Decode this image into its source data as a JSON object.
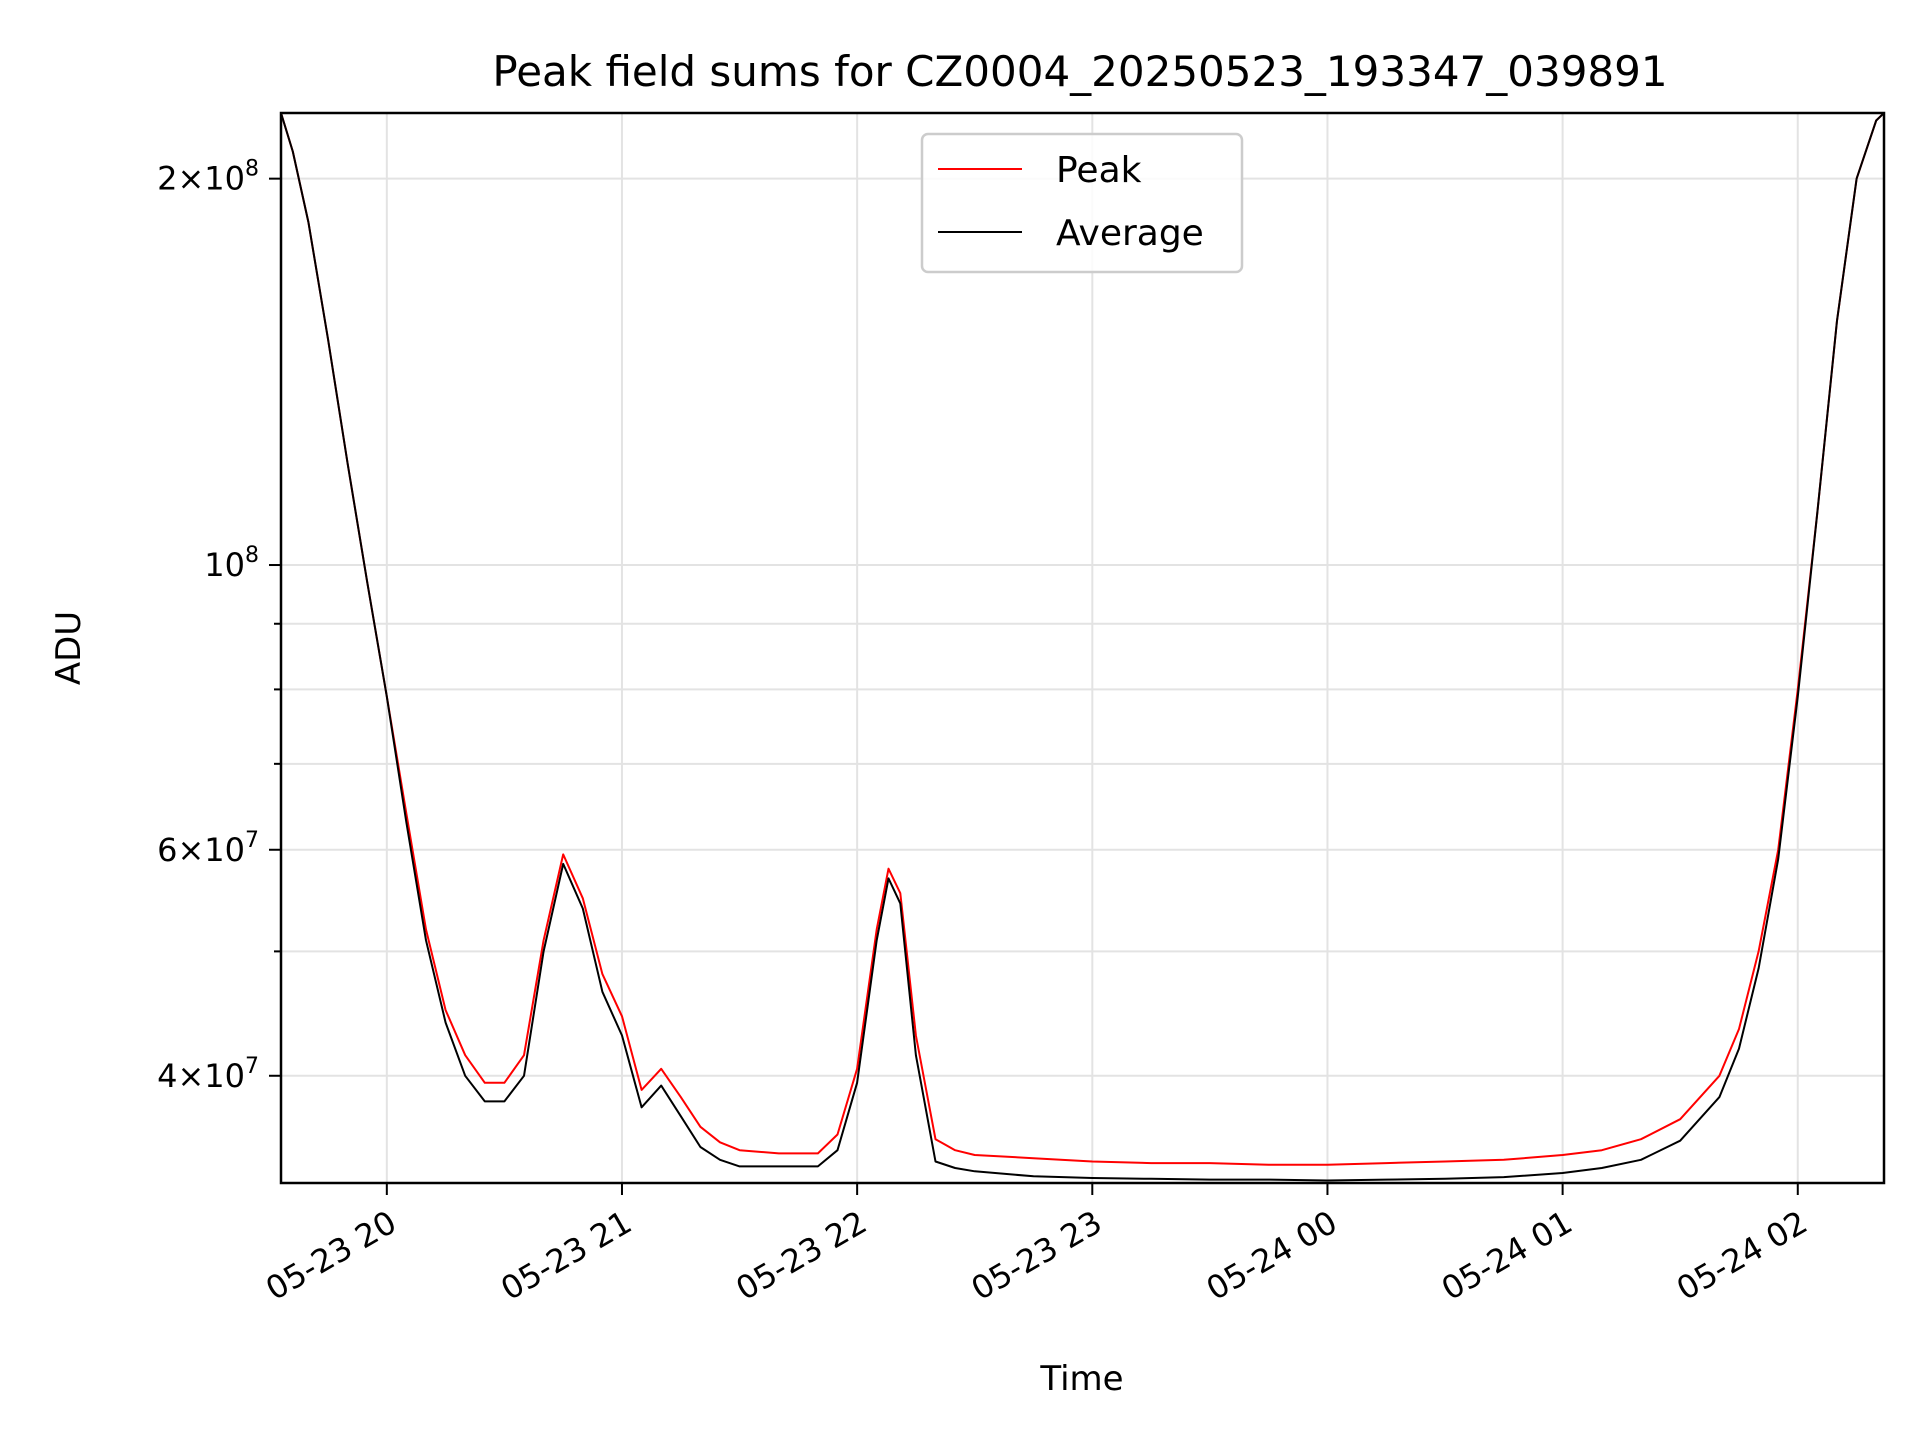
{
  "chart_data": {
    "type": "line",
    "title": "Peak field sums for CZ0004_20250523_193347_039891",
    "xlabel": "Time",
    "ylabel": "ADU",
    "xscale": "time",
    "yscale": "log",
    "xlim": [
      "2025-05-23 19:33",
      "2025-05-24 02:22"
    ],
    "ylim": [
      33000000,
      225000000
    ],
    "grid": true,
    "legend_position": "top-center",
    "x_ticks": [
      {
        "value": "2025-05-23 20:00",
        "label": "05-23 20"
      },
      {
        "value": "2025-05-23 21:00",
        "label": "05-23 21"
      },
      {
        "value": "2025-05-23 22:00",
        "label": "05-23 22"
      },
      {
        "value": "2025-05-23 23:00",
        "label": "05-23 23"
      },
      {
        "value": "2025-05-24 00:00",
        "label": "05-24 00"
      },
      {
        "value": "2025-05-24 01:00",
        "label": "05-24 01"
      },
      {
        "value": "2025-05-24 02:00",
        "label": "05-24 02"
      }
    ],
    "y_major_ticks": [
      {
        "value": 40000000,
        "mantissa": "4",
        "exponent": "7"
      },
      {
        "value": 60000000,
        "mantissa": "6",
        "exponent": "7"
      },
      {
        "value": 100000000,
        "mantissa": "",
        "exponent": "8"
      },
      {
        "value": 200000000,
        "mantissa": "2",
        "exponent": "8"
      }
    ],
    "y_minor_ticks": [
      50000000,
      70000000,
      80000000,
      90000000
    ],
    "series": [
      {
        "name": "Peak",
        "color": "#ff0000",
        "x": [
          "2025-05-23 19:33",
          "2025-05-23 19:36",
          "2025-05-23 19:40",
          "2025-05-23 19:45",
          "2025-05-23 19:50",
          "2025-05-23 19:55",
          "2025-05-23 20:00",
          "2025-05-23 20:05",
          "2025-05-23 20:10",
          "2025-05-23 20:15",
          "2025-05-23 20:20",
          "2025-05-23 20:25",
          "2025-05-23 20:30",
          "2025-05-23 20:35",
          "2025-05-23 20:40",
          "2025-05-23 20:45",
          "2025-05-23 20:50",
          "2025-05-23 20:55",
          "2025-05-23 21:00",
          "2025-05-23 21:05",
          "2025-05-23 21:10",
          "2025-05-23 21:15",
          "2025-05-23 21:20",
          "2025-05-23 21:25",
          "2025-05-23 21:30",
          "2025-05-23 21:40",
          "2025-05-23 21:50",
          "2025-05-23 21:55",
          "2025-05-23 22:00",
          "2025-05-23 22:05",
          "2025-05-23 22:08",
          "2025-05-23 22:11",
          "2025-05-23 22:15",
          "2025-05-23 22:20",
          "2025-05-23 22:25",
          "2025-05-23 22:30",
          "2025-05-23 22:45",
          "2025-05-23 23:00",
          "2025-05-23 23:15",
          "2025-05-23 23:30",
          "2025-05-23 23:45",
          "2025-05-24 00:00",
          "2025-05-24 00:15",
          "2025-05-24 00:30",
          "2025-05-24 00:45",
          "2025-05-24 01:00",
          "2025-05-24 01:10",
          "2025-05-24 01:20",
          "2025-05-24 01:30",
          "2025-05-24 01:40",
          "2025-05-24 01:45",
          "2025-05-24 01:50",
          "2025-05-24 01:55",
          "2025-05-24 02:00",
          "2025-05-24 02:05",
          "2025-05-24 02:10",
          "2025-05-24 02:15",
          "2025-05-24 02:20",
          "2025-05-24 02:22"
        ],
        "y": [
          225000000,
          210000000,
          185000000,
          150000000,
          120000000,
          97000000,
          79000000,
          64000000,
          52000000,
          45000000,
          41500000,
          39500000,
          39500000,
          41500000,
          51000000,
          59500000,
          55000000,
          48000000,
          44500000,
          39000000,
          40500000,
          38500000,
          36500000,
          35500000,
          35000000,
          34800000,
          34800000,
          36000000,
          40500000,
          52000000,
          58000000,
          55500000,
          43000000,
          35700000,
          35000000,
          34700000,
          34500000,
          34300000,
          34200000,
          34200000,
          34100000,
          34100000,
          34200000,
          34300000,
          34400000,
          34700000,
          35000000,
          35700000,
          37000000,
          40000000,
          43500000,
          50000000,
          60000000,
          80000000,
          110000000,
          155000000,
          200000000,
          222000000,
          225000000
        ]
      },
      {
        "name": "Average",
        "color": "#000000",
        "x": [
          "2025-05-23 19:33",
          "2025-05-23 19:36",
          "2025-05-23 19:40",
          "2025-05-23 19:45",
          "2025-05-23 19:50",
          "2025-05-23 19:55",
          "2025-05-23 20:00",
          "2025-05-23 20:05",
          "2025-05-23 20:10",
          "2025-05-23 20:15",
          "2025-05-23 20:20",
          "2025-05-23 20:25",
          "2025-05-23 20:30",
          "2025-05-23 20:35",
          "2025-05-23 20:40",
          "2025-05-23 20:45",
          "2025-05-23 20:50",
          "2025-05-23 20:55",
          "2025-05-23 21:00",
          "2025-05-23 21:05",
          "2025-05-23 21:10",
          "2025-05-23 21:15",
          "2025-05-23 21:20",
          "2025-05-23 21:25",
          "2025-05-23 21:30",
          "2025-05-23 21:40",
          "2025-05-23 21:50",
          "2025-05-23 21:55",
          "2025-05-23 22:00",
          "2025-05-23 22:05",
          "2025-05-23 22:08",
          "2025-05-23 22:11",
          "2025-05-23 22:15",
          "2025-05-23 22:20",
          "2025-05-23 22:25",
          "2025-05-23 22:30",
          "2025-05-23 22:45",
          "2025-05-23 23:00",
          "2025-05-23 23:15",
          "2025-05-23 23:30",
          "2025-05-23 23:45",
          "2025-05-24 00:00",
          "2025-05-24 00:15",
          "2025-05-24 00:30",
          "2025-05-24 00:45",
          "2025-05-24 01:00",
          "2025-05-24 01:10",
          "2025-05-24 01:20",
          "2025-05-24 01:30",
          "2025-05-24 01:40",
          "2025-05-24 01:45",
          "2025-05-24 01:50",
          "2025-05-24 01:55",
          "2025-05-24 02:00",
          "2025-05-24 02:05",
          "2025-05-24 02:10",
          "2025-05-24 02:15",
          "2025-05-24 02:20",
          "2025-05-24 02:22"
        ],
        "y": [
          225000000,
          210000000,
          185000000,
          150000000,
          120000000,
          97000000,
          79000000,
          63000000,
          51000000,
          44000000,
          40000000,
          38200000,
          38200000,
          40000000,
          50000000,
          58500000,
          54000000,
          46500000,
          43000000,
          37800000,
          39300000,
          37200000,
          35200000,
          34400000,
          34000000,
          34000000,
          34000000,
          35000000,
          39500000,
          51000000,
          57000000,
          54500000,
          41500000,
          34300000,
          33900000,
          33700000,
          33400000,
          33300000,
          33250000,
          33200000,
          33200000,
          33150000,
          33200000,
          33250000,
          33350000,
          33600000,
          33900000,
          34400000,
          35600000,
          38500000,
          42000000,
          48500000,
          59000000,
          79000000,
          110000000,
          155000000,
          200000000,
          222000000,
          225000000
        ]
      }
    ]
  }
}
